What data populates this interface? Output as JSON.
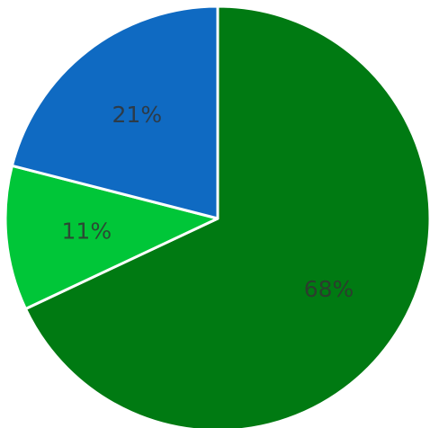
{
  "chart_data": {
    "type": "pie",
    "start_angle_deg": 0,
    "direction": "clockwise",
    "slices": [
      {
        "label": "68%",
        "value": 68,
        "color": "#007a12"
      },
      {
        "label": "11%",
        "value": 11,
        "color": "#00c638"
      },
      {
        "label": "21%",
        "value": 21,
        "color": "#0f6ac2"
      }
    ],
    "title": "",
    "legend": "none"
  }
}
